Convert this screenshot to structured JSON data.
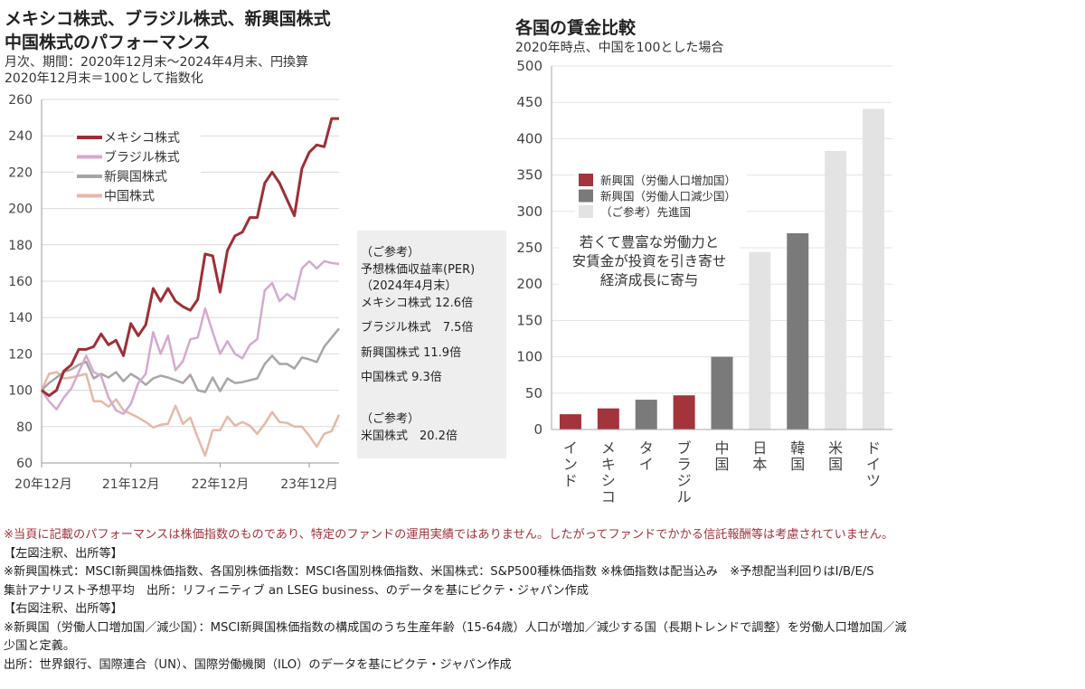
{
  "chart_data": [
    {
      "type": "line",
      "title_lines": [
        "メキシコ株式、ブラジル株式、新興国株式",
        "中国株式のパフォーマンス"
      ],
      "subtitle_lines": [
        "月次、期間：2020年12月末～2024年4月末、円換算",
        "2020年12月末＝100として指数化"
      ],
      "x_ticks": [
        "20年12月",
        "21年12月",
        "22年12月",
        "23年12月"
      ],
      "x_range": [
        "2020-12",
        "2024-04"
      ],
      "ylim": [
        60,
        260
      ],
      "y_ticks": [
        60,
        80,
        100,
        120,
        140,
        160,
        180,
        200,
        220,
        240,
        260
      ],
      "grid": true,
      "legend": "top-left",
      "series": [
        {
          "name": "メキシコ株式",
          "color": "#9e2f36",
          "values": [
            100,
            97,
            100,
            110.6,
            114,
            122.5,
            122.5,
            124,
            131,
            125,
            127.5,
            119,
            136.7,
            130,
            136,
            156,
            149,
            156,
            149,
            146,
            144,
            150,
            175,
            174,
            154,
            177,
            185,
            187,
            195,
            195,
            214,
            220,
            214,
            205,
            196,
            222,
            231,
            235,
            234,
            249.5,
            249.5
          ]
        },
        {
          "name": "ブラジル株式",
          "color": "#d4a9cf",
          "values": [
            100,
            94,
            89.5,
            96,
            101,
            110,
            119,
            110,
            108,
            96,
            89,
            87,
            92.5,
            104,
            109,
            132,
            120,
            130,
            111,
            116,
            128,
            129,
            145,
            132,
            120,
            127,
            120,
            117.6,
            125,
            128,
            155,
            159,
            149,
            153,
            150,
            167,
            171,
            167,
            171,
            170,
            169.5
          ]
        },
        {
          "name": "新興国株式",
          "color": "#a6a6a6",
          "values": [
            100,
            104,
            107,
            110,
            111.5,
            114,
            115.6,
            106.5,
            109,
            107,
            110,
            105,
            109,
            106.5,
            103,
            106.5,
            108,
            107,
            105.5,
            104,
            108.5,
            100,
            99,
            107,
            99.5,
            106.5,
            104,
            104.5,
            105.5,
            106.5,
            114.5,
            119,
            114.5,
            114.5,
            112,
            118,
            117,
            115.5,
            124,
            129,
            134
          ]
        },
        {
          "name": "中国株式",
          "color": "#e6b8a7",
          "values": [
            100,
            109,
            110,
            106.5,
            107,
            108,
            109,
            94,
            94,
            91,
            95,
            89,
            87,
            85,
            82.5,
            79.5,
            81,
            81.5,
            91.5,
            81.5,
            85,
            74,
            64,
            78,
            78,
            85.5,
            80.5,
            82.5,
            80.5,
            76,
            81.5,
            88,
            82.5,
            82,
            80,
            80,
            75,
            69,
            76,
            77.5,
            86.5
          ]
        }
      ]
    },
    {
      "type": "bar",
      "title": "各国の賃金比較",
      "subtitle": "2020年時点、中国を100とした場合",
      "ylim": [
        0,
        500
      ],
      "y_ticks": [
        0,
        50,
        100,
        150,
        200,
        250,
        300,
        350,
        400,
        450,
        500
      ],
      "grid": true,
      "legend": "middle-left",
      "categories": [
        "インド",
        "メキシコ",
        "タイ",
        "ブラジル",
        "中国",
        "日本",
        "韓国",
        "米国",
        "ドイツ"
      ],
      "values": [
        21,
        29,
        41,
        47,
        100,
        244,
        270,
        383,
        441
      ],
      "groups": [
        "growing",
        "growing",
        "shrinking",
        "growing",
        "shrinking",
        "developed",
        "shrinking",
        "developed",
        "developed"
      ],
      "legend_entries": [
        {
          "key": "growing",
          "label": "新興国（労働人口増加国）",
          "color": "#a3343c"
        },
        {
          "key": "shrinking",
          "label": "新興国（労働人口減少国）",
          "color": "#7a7a7a"
        },
        {
          "key": "developed",
          "label": "（ご参考）先進国",
          "color": "#e3e3e3"
        }
      ],
      "annotation_lines": [
        "若くて豊富な労働力と",
        "安賃金が投資を引き寄せ",
        "経済成長に寄与"
      ]
    }
  ],
  "per_box": {
    "lines": [
      "（ご参考）",
      "予想株価収益率(PER)",
      "（2024年4月末）",
      "メキシコ株式 12.6倍",
      "ブラジル株式　7.5倍",
      "新興国株式 11.9倍",
      "中国株式 9.3倍",
      "",
      "（ご参考）",
      "米国株式　20.2倍"
    ]
  },
  "footnotes": {
    "warning": "※当頁に記載のパフォーマンスは株価指数のものであり、特定のファンドの運用実績ではありません。したがってファンドでかかる信託報酬等は考慮されていません。",
    "left_header": "【左図注釈、出所等】",
    "left_1": "※新興国株式：MSCI新興国株価指数、各国別株価指数：MSCI各国別株価指数、米国株式：S&P500種株価指数 ※株価指数は配当込み　※予想配当利回りはI/B/E/S",
    "left_2": "集計アナリスト予想平均　出所：リフィニティブ an LSEG business、のデータを基にピクテ・ジャパン作成",
    "right_header": "【右図注釈、出所等】",
    "right_1": "※新興国（労働人口増加国／減少国）：MSCI新興国株価指数の構成国のうち生産年齢（15-64歳）人口が増加／減少する国（長期トレンドで調整）を労働人口増加国／減",
    "right_2": "少国と定義。",
    "right_3": "出所：世界銀行、国際連合（UN）、国際労働機関（ILO）のデータを基にピクテ・ジャパン作成"
  }
}
